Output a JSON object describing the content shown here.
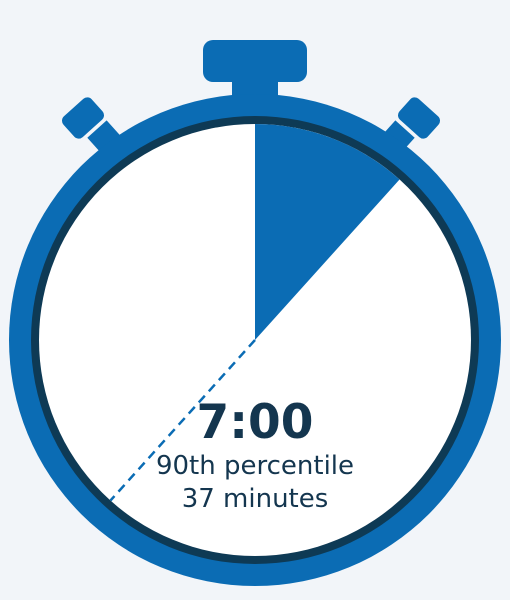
{
  "colors": {
    "body_blue": "#0b6cb4",
    "inner_ring": "#0e3a55",
    "face": "#ffffff",
    "text": "#14364f",
    "background": "#f2f5f9"
  },
  "stopwatch": {
    "time": "7:00",
    "elapsed_minutes": 7,
    "percentile_label": "90th percentile",
    "percentile_minutes": 37,
    "duration_label": "37 minutes"
  }
}
